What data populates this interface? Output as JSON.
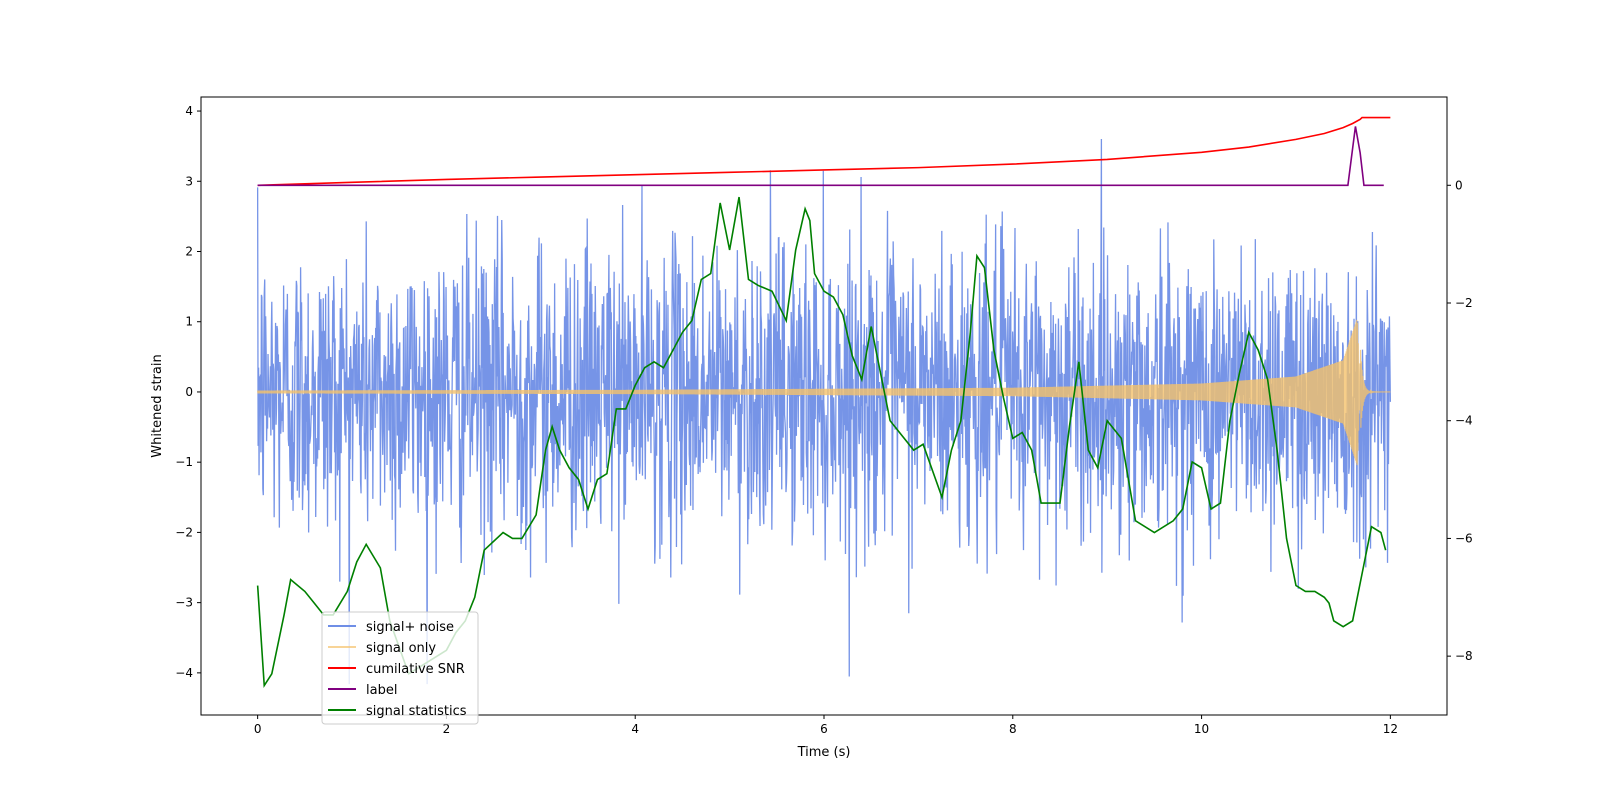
{
  "chart_data": {
    "type": "line",
    "title": "",
    "xlabel": "Time (s)",
    "ylabel": "Whitened strain",
    "ylabel_right": "",
    "xlim": [
      -0.6,
      12.6
    ],
    "ylim": [
      -4.6,
      4.2
    ],
    "ylim_right": [
      -9.0,
      1.5
    ],
    "xticks": [
      0,
      2,
      4,
      6,
      8,
      10,
      12
    ],
    "xtick_labels": [
      "0",
      "2",
      "4",
      "6",
      "8",
      "10",
      "12"
    ],
    "yticks": [
      -4,
      -3,
      -2,
      -1,
      0,
      1,
      2,
      3,
      4
    ],
    "ytick_labels": [
      "−4",
      "−3",
      "−2",
      "−1",
      "0",
      "1",
      "2",
      "3",
      "4"
    ],
    "yticks_right": [
      -8,
      -6,
      -4,
      -2,
      0
    ],
    "ytick_labels_right": [
      "−8",
      "−6",
      "−4",
      "−2",
      "0"
    ],
    "legend_position": "lower-left",
    "series": [
      {
        "name": "signal+ noise",
        "axis": "left",
        "color": "#6f8ee6",
        "kind": "noise",
        "x_range": [
          0,
          12
        ],
        "spread_std": 1.05,
        "peak_max": 3.78,
        "peak_min": -4.16
      },
      {
        "name": "signal only",
        "axis": "left",
        "color": "#f5c26b",
        "kind": "chirp",
        "x_range": [
          0,
          12
        ],
        "merger_time": 11.68,
        "amplitude_points": [
          [
            0,
            0.02
          ],
          [
            4,
            0.03
          ],
          [
            8,
            0.06
          ],
          [
            10,
            0.12
          ],
          [
            11,
            0.22
          ],
          [
            11.5,
            0.45
          ],
          [
            11.65,
            1.05
          ],
          [
            11.7,
            -0.75
          ]
        ]
      },
      {
        "name": "cumilative SNR",
        "axis": "right",
        "color": "#ff0000",
        "x": [
          0,
          1,
          2,
          3,
          4,
          5,
          6,
          7,
          8,
          9,
          10,
          10.5,
          11,
          11.3,
          11.5,
          11.6,
          11.68,
          11.7,
          12
        ],
        "values": [
          0,
          0.05,
          0.1,
          0.14,
          0.18,
          0.22,
          0.26,
          0.3,
          0.36,
          0.44,
          0.56,
          0.65,
          0.78,
          0.88,
          0.98,
          1.05,
          1.12,
          1.15,
          1.15
        ]
      },
      {
        "name": "label",
        "axis": "right",
        "color": "#800080",
        "x": [
          0,
          11.55,
          11.63,
          11.68,
          11.72,
          11.93
        ],
        "values": [
          0,
          0,
          1.0,
          0.55,
          0,
          0
        ]
      },
      {
        "name": "signal statistics",
        "axis": "right",
        "color": "#008000",
        "x": [
          0,
          0.07,
          0.15,
          0.28,
          0.35,
          0.5,
          0.6,
          0.7,
          0.8,
          0.95,
          1.05,
          1.15,
          1.3,
          1.4,
          1.6,
          1.8,
          2.0,
          2.1,
          2.2,
          2.3,
          2.4,
          2.6,
          2.7,
          2.8,
          2.95,
          3.05,
          3.12,
          3.2,
          3.3,
          3.4,
          3.5,
          3.6,
          3.7,
          3.8,
          3.9,
          4.0,
          4.1,
          4.2,
          4.3,
          4.4,
          4.5,
          4.6,
          4.7,
          4.8,
          4.9,
          5.0,
          5.1,
          5.2,
          5.3,
          5.45,
          5.6,
          5.7,
          5.8,
          5.85,
          5.9,
          6.0,
          6.1,
          6.2,
          6.3,
          6.4,
          6.5,
          6.7,
          6.8,
          6.95,
          7.05,
          7.25,
          7.35,
          7.45,
          7.55,
          7.62,
          7.7,
          7.8,
          7.9,
          8.0,
          8.1,
          8.2,
          8.3,
          8.5,
          8.6,
          8.7,
          8.8,
          8.9,
          9.0,
          9.15,
          9.3,
          9.5,
          9.7,
          9.8,
          9.9,
          10.0,
          10.1,
          10.2,
          10.3,
          10.4,
          10.5,
          10.6,
          10.7,
          10.8,
          10.9,
          11.0,
          11.1,
          11.2,
          11.3,
          11.35,
          11.4,
          11.5,
          11.6,
          11.7,
          11.8,
          11.9,
          11.95
        ],
        "values": [
          -6.8,
          -8.5,
          -8.3,
          -7.3,
          -6.7,
          -6.9,
          -7.1,
          -7.3,
          -7.3,
          -6.9,
          -6.4,
          -6.1,
          -6.5,
          -7.4,
          -8.3,
          -8.1,
          -7.9,
          -7.6,
          -7.4,
          -7.0,
          -6.2,
          -5.9,
          -6.0,
          -6.0,
          -5.6,
          -4.5,
          -4.1,
          -4.5,
          -4.8,
          -5.0,
          -5.5,
          -5.0,
          -4.9,
          -3.8,
          -3.8,
          -3.4,
          -3.1,
          -3.0,
          -3.1,
          -2.8,
          -2.5,
          -2.3,
          -1.6,
          -1.5,
          -0.3,
          -1.1,
          -0.2,
          -1.6,
          -1.7,
          -1.8,
          -2.3,
          -1.1,
          -0.4,
          -0.6,
          -1.5,
          -1.8,
          -1.9,
          -2.2,
          -2.9,
          -3.3,
          -2.4,
          -4.0,
          -4.2,
          -4.5,
          -4.4,
          -5.3,
          -4.5,
          -4.0,
          -2.5,
          -1.2,
          -1.4,
          -2.8,
          -3.6,
          -4.3,
          -4.2,
          -4.5,
          -5.4,
          -5.4,
          -4.1,
          -3.0,
          -4.5,
          -4.8,
          -4.0,
          -4.3,
          -5.7,
          -5.9,
          -5.7,
          -5.5,
          -4.7,
          -4.8,
          -5.5,
          -5.4,
          -4.0,
          -3.2,
          -2.5,
          -2.8,
          -3.3,
          -4.5,
          -6.0,
          -6.8,
          -6.9,
          -6.9,
          -7.0,
          -7.1,
          -7.4,
          -7.5,
          -7.4,
          -6.6,
          -5.8,
          -5.9,
          -6.2
        ]
      }
    ]
  }
}
